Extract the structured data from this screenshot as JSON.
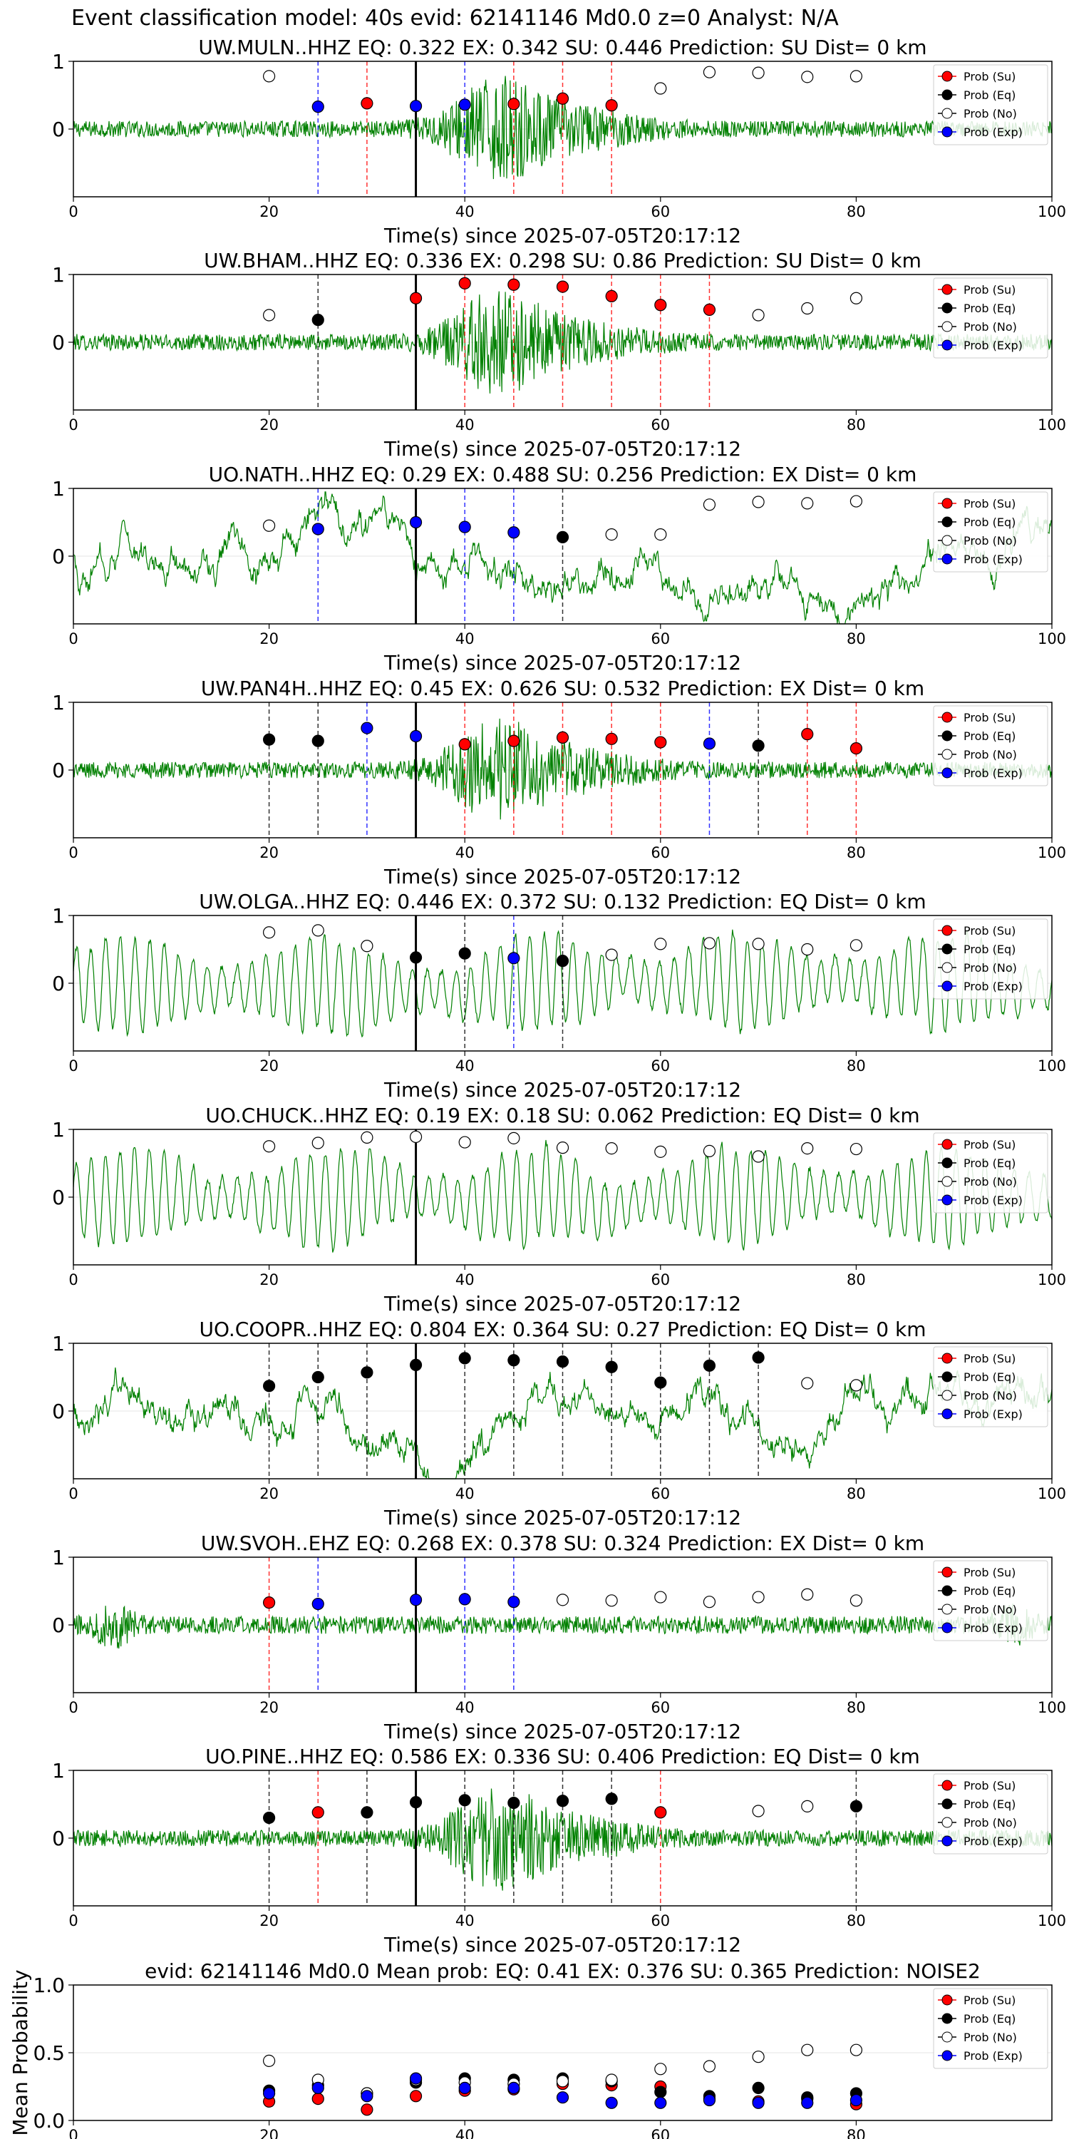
{
  "figure": {
    "title": "Event classification model: 40s evid: 62141146 Md0.0 z=0 Analyst: N/A"
  },
  "legend": {
    "su": "Prob (Su)",
    "eq": "Prob (Eq)",
    "no": "Prob (No)",
    "exp": "Prob (Exp)"
  },
  "colors": {
    "waveform": "#008000",
    "su": "#ff0000",
    "eq": "#000000",
    "no": "#ffffff",
    "exp": "#0000ff",
    "line_su": "#ff0000",
    "line_eq": "#000000",
    "line_exp": "#0000ff"
  },
  "chart_data": [
    {
      "type": "scatter",
      "title": "UW.MULN..HHZ   EQ: 0.322  EX: 0.342  SU: 0.446   Prediction: SU    Dist= 0 km",
      "xlabel": "Time(s) since 2025-07-05T20:17:12",
      "ylabel": "",
      "xlim": [
        0,
        100
      ],
      "ylim": [
        -1,
        1
      ],
      "xticks": [
        0,
        20,
        40,
        60,
        80,
        100
      ],
      "yticks": [
        0,
        1
      ],
      "reference_time": 35,
      "waveform_style": "burst",
      "points": [
        {
          "x": 20,
          "y": 0.78,
          "class": "no"
        },
        {
          "x": 25,
          "y": 0.33,
          "class": "exp"
        },
        {
          "x": 30,
          "y": 0.38,
          "class": "su"
        },
        {
          "x": 35,
          "y": 0.34,
          "class": "exp"
        },
        {
          "x": 40,
          "y": 0.36,
          "class": "exp"
        },
        {
          "x": 45,
          "y": 0.37,
          "class": "su"
        },
        {
          "x": 50,
          "y": 0.45,
          "class": "su"
        },
        {
          "x": 55,
          "y": 0.35,
          "class": "su"
        },
        {
          "x": 60,
          "y": 0.6,
          "class": "no"
        },
        {
          "x": 65,
          "y": 0.84,
          "class": "no"
        },
        {
          "x": 70,
          "y": 0.83,
          "class": "no"
        },
        {
          "x": 75,
          "y": 0.77,
          "class": "no"
        },
        {
          "x": 80,
          "y": 0.78,
          "class": "no"
        }
      ]
    },
    {
      "type": "scatter",
      "title": "UW.BHAM..HHZ   EQ: 0.336  EX: 0.298  SU: 0.86   Prediction: SU    Dist= 0 km",
      "xlabel": "Time(s) since 2025-07-05T20:17:12",
      "ylabel": "",
      "xlim": [
        0,
        100
      ],
      "ylim": [
        -1,
        1
      ],
      "xticks": [
        0,
        20,
        40,
        60,
        80,
        100
      ],
      "yticks": [
        0,
        1
      ],
      "reference_time": 35,
      "waveform_style": "burst",
      "points": [
        {
          "x": 20,
          "y": 0.4,
          "class": "no"
        },
        {
          "x": 25,
          "y": 0.33,
          "class": "eq"
        },
        {
          "x": 35,
          "y": 0.65,
          "class": "su"
        },
        {
          "x": 40,
          "y": 0.87,
          "class": "su"
        },
        {
          "x": 45,
          "y": 0.85,
          "class": "su"
        },
        {
          "x": 50,
          "y": 0.82,
          "class": "su"
        },
        {
          "x": 55,
          "y": 0.68,
          "class": "su"
        },
        {
          "x": 60,
          "y": 0.55,
          "class": "su"
        },
        {
          "x": 65,
          "y": 0.48,
          "class": "su"
        },
        {
          "x": 70,
          "y": 0.4,
          "class": "no"
        },
        {
          "x": 75,
          "y": 0.5,
          "class": "no"
        },
        {
          "x": 80,
          "y": 0.65,
          "class": "no"
        }
      ]
    },
    {
      "type": "scatter",
      "title": "UO.NATH..HHZ   EQ: 0.29  EX: 0.488  SU: 0.256   Prediction: EX    Dist= 0 km",
      "xlabel": "Time(s) since 2025-07-05T20:17:12",
      "ylabel": "",
      "xlim": [
        0,
        100
      ],
      "ylim": [
        -1,
        1
      ],
      "xticks": [
        0,
        20,
        40,
        60,
        80,
        100
      ],
      "yticks": [
        0,
        1
      ],
      "reference_time": 35,
      "waveform_style": "wander",
      "points": [
        {
          "x": 20,
          "y": 0.45,
          "class": "no"
        },
        {
          "x": 25,
          "y": 0.4,
          "class": "exp"
        },
        {
          "x": 35,
          "y": 0.5,
          "class": "exp"
        },
        {
          "x": 40,
          "y": 0.43,
          "class": "exp"
        },
        {
          "x": 45,
          "y": 0.35,
          "class": "exp"
        },
        {
          "x": 50,
          "y": 0.28,
          "class": "eq"
        },
        {
          "x": 55,
          "y": 0.32,
          "class": "no"
        },
        {
          "x": 60,
          "y": 0.32,
          "class": "no"
        },
        {
          "x": 65,
          "y": 0.76,
          "class": "no"
        },
        {
          "x": 70,
          "y": 0.8,
          "class": "no"
        },
        {
          "x": 75,
          "y": 0.78,
          "class": "no"
        },
        {
          "x": 80,
          "y": 0.81,
          "class": "no"
        }
      ]
    },
    {
      "type": "scatter",
      "title": "UW.PAN4H..HHZ   EQ: 0.45  EX: 0.626  SU: 0.532   Prediction: EX    Dist= 0 km",
      "xlabel": "Time(s) since 2025-07-05T20:17:12",
      "ylabel": "",
      "xlim": [
        0,
        100
      ],
      "ylim": [
        -1,
        1
      ],
      "xticks": [
        0,
        20,
        40,
        60,
        80,
        100
      ],
      "yticks": [
        0,
        1
      ],
      "reference_time": 35,
      "waveform_style": "burst",
      "points": [
        {
          "x": 20,
          "y": 0.45,
          "class": "eq"
        },
        {
          "x": 25,
          "y": 0.43,
          "class": "eq"
        },
        {
          "x": 30,
          "y": 0.62,
          "class": "exp"
        },
        {
          "x": 35,
          "y": 0.5,
          "class": "exp"
        },
        {
          "x": 40,
          "y": 0.38,
          "class": "su"
        },
        {
          "x": 45,
          "y": 0.43,
          "class": "su"
        },
        {
          "x": 50,
          "y": 0.48,
          "class": "su"
        },
        {
          "x": 55,
          "y": 0.46,
          "class": "su"
        },
        {
          "x": 60,
          "y": 0.41,
          "class": "su"
        },
        {
          "x": 65,
          "y": 0.39,
          "class": "exp"
        },
        {
          "x": 70,
          "y": 0.36,
          "class": "eq"
        },
        {
          "x": 75,
          "y": 0.53,
          "class": "su"
        },
        {
          "x": 80,
          "y": 0.32,
          "class": "su"
        }
      ]
    },
    {
      "type": "scatter",
      "title": "UW.OLGA..HHZ   EQ: 0.446  EX: 0.372  SU: 0.132   Prediction: EQ    Dist= 0 km",
      "xlabel": "Time(s) since 2025-07-05T20:17:12",
      "ylabel": "",
      "xlim": [
        0,
        100
      ],
      "ylim": [
        -1,
        1
      ],
      "xticks": [
        0,
        20,
        40,
        60,
        80,
        100
      ],
      "yticks": [
        0,
        1
      ],
      "reference_time": 35,
      "waveform_style": "oscillation",
      "points": [
        {
          "x": 20,
          "y": 0.75,
          "class": "no"
        },
        {
          "x": 25,
          "y": 0.78,
          "class": "no"
        },
        {
          "x": 30,
          "y": 0.55,
          "class": "no"
        },
        {
          "x": 35,
          "y": 0.38,
          "class": "eq"
        },
        {
          "x": 40,
          "y": 0.44,
          "class": "eq"
        },
        {
          "x": 45,
          "y": 0.37,
          "class": "exp"
        },
        {
          "x": 50,
          "y": 0.33,
          "class": "eq"
        },
        {
          "x": 55,
          "y": 0.42,
          "class": "no"
        },
        {
          "x": 60,
          "y": 0.58,
          "class": "no"
        },
        {
          "x": 65,
          "y": 0.59,
          "class": "no"
        },
        {
          "x": 70,
          "y": 0.58,
          "class": "no"
        },
        {
          "x": 75,
          "y": 0.5,
          "class": "no"
        },
        {
          "x": 80,
          "y": 0.56,
          "class": "no"
        }
      ]
    },
    {
      "type": "scatter",
      "title": "UO.CHUCK..HHZ   EQ: 0.19  EX: 0.18  SU: 0.062   Prediction: EQ    Dist= 0 km",
      "xlabel": "Time(s) since 2025-07-05T20:17:12",
      "ylabel": "",
      "xlim": [
        0,
        100
      ],
      "ylim": [
        -1,
        1
      ],
      "xticks": [
        0,
        20,
        40,
        60,
        80,
        100
      ],
      "yticks": [
        0,
        1
      ],
      "reference_time": 35,
      "waveform_style": "oscillation",
      "points": [
        {
          "x": 20,
          "y": 0.75,
          "class": "no"
        },
        {
          "x": 25,
          "y": 0.8,
          "class": "no"
        },
        {
          "x": 30,
          "y": 0.88,
          "class": "no"
        },
        {
          "x": 35,
          "y": 0.89,
          "class": "no"
        },
        {
          "x": 40,
          "y": 0.81,
          "class": "no"
        },
        {
          "x": 45,
          "y": 0.87,
          "class": "no"
        },
        {
          "x": 50,
          "y": 0.73,
          "class": "no"
        },
        {
          "x": 55,
          "y": 0.72,
          "class": "no"
        },
        {
          "x": 60,
          "y": 0.67,
          "class": "no"
        },
        {
          "x": 65,
          "y": 0.68,
          "class": "no"
        },
        {
          "x": 70,
          "y": 0.6,
          "class": "no"
        },
        {
          "x": 75,
          "y": 0.72,
          "class": "no"
        },
        {
          "x": 80,
          "y": 0.71,
          "class": "no"
        }
      ]
    },
    {
      "type": "scatter",
      "title": "UO.COOPR..HHZ   EQ: 0.804  EX: 0.364  SU: 0.27   Prediction: EQ    Dist= 0 km",
      "xlabel": "Time(s) since 2025-07-05T20:17:12",
      "ylabel": "",
      "xlim": [
        0,
        100
      ],
      "ylim": [
        -1,
        1
      ],
      "xticks": [
        0,
        20,
        40,
        60,
        80,
        100
      ],
      "yticks": [
        0,
        1
      ],
      "reference_time": 35,
      "waveform_style": "wander",
      "points": [
        {
          "x": 20,
          "y": 0.37,
          "class": "eq"
        },
        {
          "x": 25,
          "y": 0.5,
          "class": "eq"
        },
        {
          "x": 30,
          "y": 0.57,
          "class": "eq"
        },
        {
          "x": 35,
          "y": 0.68,
          "class": "eq"
        },
        {
          "x": 40,
          "y": 0.78,
          "class": "eq"
        },
        {
          "x": 45,
          "y": 0.75,
          "class": "eq"
        },
        {
          "x": 50,
          "y": 0.73,
          "class": "eq"
        },
        {
          "x": 55,
          "y": 0.65,
          "class": "eq"
        },
        {
          "x": 60,
          "y": 0.42,
          "class": "eq"
        },
        {
          "x": 65,
          "y": 0.67,
          "class": "eq"
        },
        {
          "x": 70,
          "y": 0.79,
          "class": "eq"
        },
        {
          "x": 75,
          "y": 0.41,
          "class": "no"
        },
        {
          "x": 80,
          "y": 0.38,
          "class": "no"
        }
      ]
    },
    {
      "type": "scatter",
      "title": "UW.SVOH..EHZ   EQ: 0.268  EX: 0.378  SU: 0.324   Prediction: EX    Dist= 0 km",
      "xlabel": "Time(s) since 2025-07-05T20:17:12",
      "ylabel": "",
      "xlim": [
        0,
        100
      ],
      "ylim": [
        -1,
        1
      ],
      "xticks": [
        0,
        20,
        40,
        60,
        80,
        100
      ],
      "yticks": [
        0,
        1
      ],
      "reference_time": 35,
      "waveform_style": "noise",
      "points": [
        {
          "x": 20,
          "y": 0.33,
          "class": "su"
        },
        {
          "x": 25,
          "y": 0.31,
          "class": "exp"
        },
        {
          "x": 35,
          "y": 0.37,
          "class": "exp"
        },
        {
          "x": 40,
          "y": 0.38,
          "class": "exp"
        },
        {
          "x": 45,
          "y": 0.34,
          "class": "exp"
        },
        {
          "x": 50,
          "y": 0.37,
          "class": "no"
        },
        {
          "x": 55,
          "y": 0.36,
          "class": "no"
        },
        {
          "x": 60,
          "y": 0.41,
          "class": "no"
        },
        {
          "x": 65,
          "y": 0.34,
          "class": "no"
        },
        {
          "x": 70,
          "y": 0.41,
          "class": "no"
        },
        {
          "x": 75,
          "y": 0.45,
          "class": "no"
        },
        {
          "x": 80,
          "y": 0.36,
          "class": "no"
        }
      ]
    },
    {
      "type": "scatter",
      "title": "UO.PINE..HHZ   EQ: 0.586  EX: 0.336  SU: 0.406   Prediction: EQ    Dist= 0 km",
      "xlabel": "Time(s) since 2025-07-05T20:17:12",
      "ylabel": "",
      "xlim": [
        0,
        100
      ],
      "ylim": [
        -1,
        1
      ],
      "xticks": [
        0,
        20,
        40,
        60,
        80,
        100
      ],
      "yticks": [
        0,
        1
      ],
      "reference_time": 35,
      "waveform_style": "burst",
      "points": [
        {
          "x": 20,
          "y": 0.3,
          "class": "eq"
        },
        {
          "x": 25,
          "y": 0.38,
          "class": "su"
        },
        {
          "x": 30,
          "y": 0.38,
          "class": "eq"
        },
        {
          "x": 35,
          "y": 0.53,
          "class": "eq"
        },
        {
          "x": 40,
          "y": 0.56,
          "class": "eq"
        },
        {
          "x": 45,
          "y": 0.52,
          "class": "eq"
        },
        {
          "x": 50,
          "y": 0.55,
          "class": "eq"
        },
        {
          "x": 55,
          "y": 0.58,
          "class": "eq"
        },
        {
          "x": 60,
          "y": 0.38,
          "class": "su"
        },
        {
          "x": 70,
          "y": 0.4,
          "class": "no"
        },
        {
          "x": 75,
          "y": 0.47,
          "class": "no"
        },
        {
          "x": 80,
          "y": 0.47,
          "class": "eq"
        }
      ]
    },
    {
      "type": "scatter",
      "title": "evid: 62141146  Md0.0   Mean prob:   EQ: 0.41  EX: 0.376  SU: 0.365   Prediction: NOISE2",
      "xlabel": "",
      "ylabel": "Mean Probability",
      "xlim": [
        0,
        100
      ],
      "ylim": [
        0,
        1
      ],
      "xticks": [
        0,
        20,
        40,
        60,
        80
      ],
      "yticks": [
        0.0,
        0.5,
        1.0
      ],
      "series": [
        {
          "name": "Prob (Su)",
          "class": "su",
          "x": [
            20,
            25,
            30,
            35,
            40,
            45,
            50,
            55,
            60,
            65,
            70,
            75,
            80
          ],
          "values": [
            0.14,
            0.16,
            0.08,
            0.18,
            0.22,
            0.23,
            0.27,
            0.26,
            0.25,
            0.16,
            0.14,
            0.16,
            0.12
          ]
        },
        {
          "name": "Prob (Eq)",
          "class": "eq",
          "x": [
            20,
            25,
            30,
            35,
            40,
            45,
            50,
            55,
            60,
            65,
            70,
            75,
            80
          ],
          "values": [
            0.22,
            0.26,
            0.2,
            0.28,
            0.31,
            0.3,
            0.31,
            0.29,
            0.21,
            0.18,
            0.24,
            0.17,
            0.2
          ]
        },
        {
          "name": "Prob (No)",
          "class": "no",
          "x": [
            20,
            25,
            30,
            35,
            40,
            45,
            50,
            55,
            60,
            65,
            70,
            75,
            80
          ],
          "values": [
            0.44,
            0.3,
            0.2,
            0.3,
            0.28,
            0.27,
            0.29,
            0.3,
            0.38,
            0.4,
            0.47,
            0.52,
            0.52
          ]
        },
        {
          "name": "Prob (Exp)",
          "class": "exp",
          "x": [
            20,
            25,
            30,
            35,
            40,
            45,
            50,
            55,
            60,
            65,
            70,
            75,
            80
          ],
          "values": [
            0.2,
            0.24,
            0.18,
            0.31,
            0.24,
            0.24,
            0.17,
            0.13,
            0.13,
            0.15,
            0.13,
            0.13,
            0.15
          ]
        }
      ]
    }
  ]
}
